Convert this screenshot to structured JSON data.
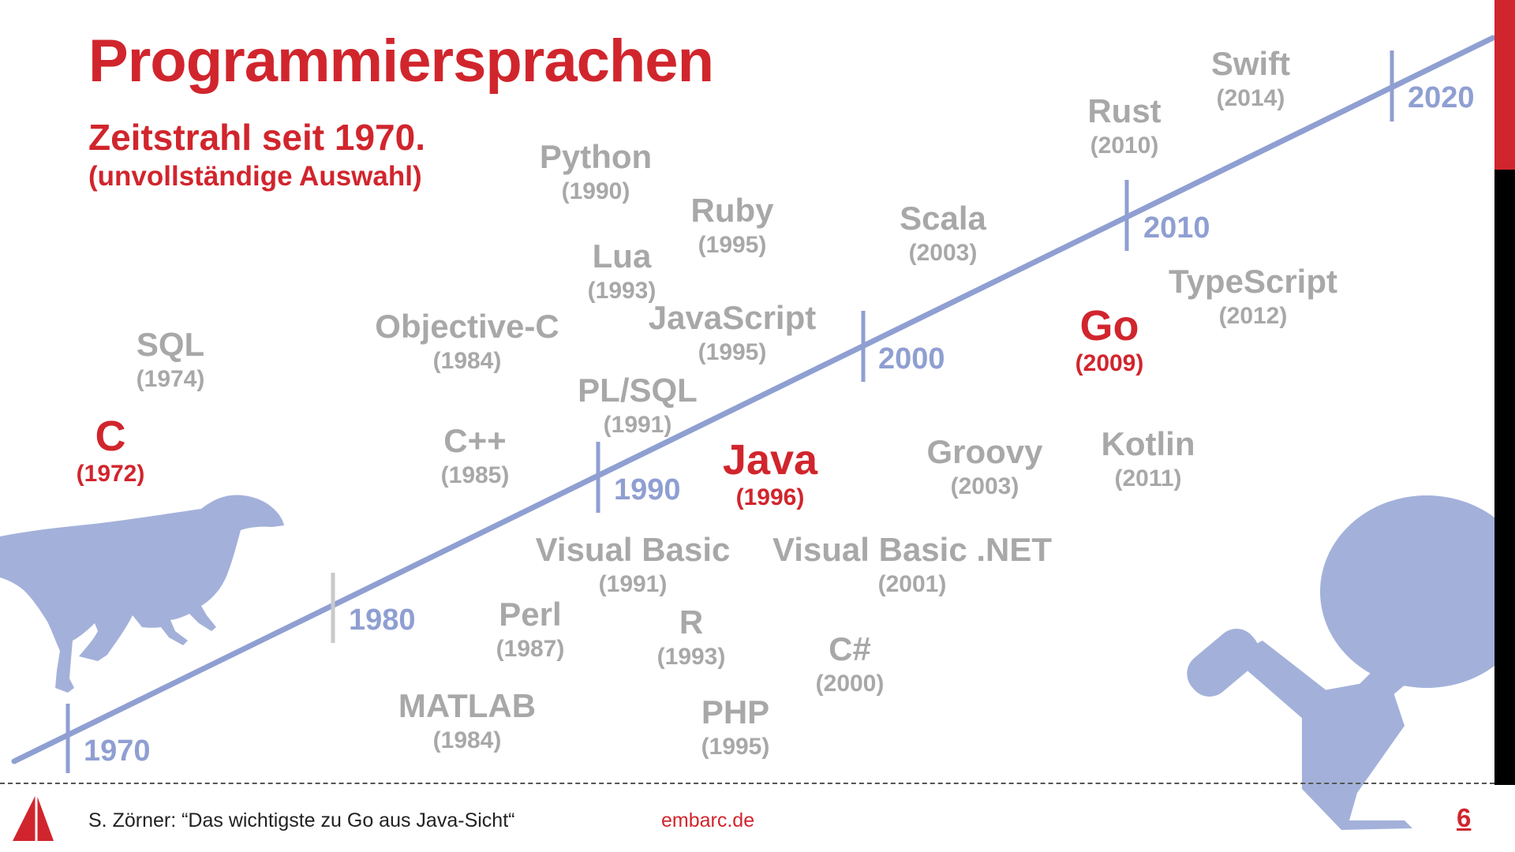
{
  "title": "Programmiersprachen",
  "subtitle": "Zeitstrahl seit 1970.",
  "note": "(unvollständige Auswahl)",
  "colors": {
    "accent": "#d1252d",
    "timeline": "#8f9fd2",
    "muted": "#a8a8a8"
  },
  "timeline": {
    "decades": [
      "1970",
      "1980",
      "1990",
      "2000",
      "2010",
      "2020"
    ]
  },
  "languages": [
    {
      "name": "C",
      "year": "(1972)",
      "highlight": true
    },
    {
      "name": "SQL",
      "year": "(1974)"
    },
    {
      "name": "Objective-C",
      "year": "(1984)"
    },
    {
      "name": "C++",
      "year": "(1985)"
    },
    {
      "name": "MATLAB",
      "year": "(1984)"
    },
    {
      "name": "Perl",
      "year": "(1987)"
    },
    {
      "name": "Python",
      "year": "(1990)"
    },
    {
      "name": "Lua",
      "year": "(1993)"
    },
    {
      "name": "PL/SQL",
      "year": "(1991)"
    },
    {
      "name": "Visual Basic",
      "year": "(1991)"
    },
    {
      "name": "R",
      "year": "(1993)"
    },
    {
      "name": "Ruby",
      "year": "(1995)"
    },
    {
      "name": "JavaScript",
      "year": "(1995)"
    },
    {
      "name": "PHP",
      "year": "(1995)"
    },
    {
      "name": "Java",
      "year": "(1996)",
      "highlight": true
    },
    {
      "name": "C#",
      "year": "(2000)"
    },
    {
      "name": "Visual Basic .NET",
      "year": "(2001)"
    },
    {
      "name": "Scala",
      "year": "(2003)"
    },
    {
      "name": "Groovy",
      "year": "(2003)"
    },
    {
      "name": "Go",
      "year": "(2009)",
      "highlight": true
    },
    {
      "name": "Rust",
      "year": "(2010)"
    },
    {
      "name": "Kotlin",
      "year": "(2011)"
    },
    {
      "name": "TypeScript",
      "year": "(2012)"
    },
    {
      "name": "Swift",
      "year": "(2014)"
    }
  ],
  "footer": {
    "credit": "S. Zörner: “Das wichtigste zu Go aus Java-Sicht“",
    "site": "embarc.de",
    "page": "6"
  },
  "illustrations": [
    "dinosaur-icon",
    "starship-icon",
    "embarc-logo-icon"
  ]
}
